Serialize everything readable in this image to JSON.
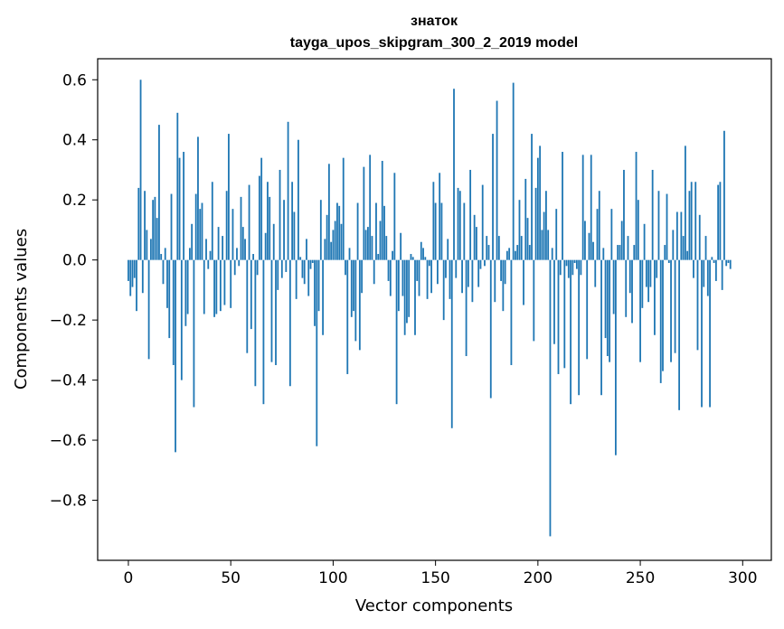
{
  "chart_data": {
    "type": "bar",
    "title": "знаток",
    "subtitle": "tayga_upos_skipgram_300_2_2019 model",
    "xlabel": "Vector components",
    "ylabel": "Components values",
    "xlim": [
      -15,
      314
    ],
    "ylim": [
      -1.0,
      0.67
    ],
    "xticks": [
      0,
      50,
      100,
      150,
      200,
      250,
      300
    ],
    "xtick_labels": [
      "0",
      "50",
      "100",
      "150",
      "200",
      "250",
      "300"
    ],
    "yticks": [
      0.6,
      0.4,
      0.2,
      0.0,
      -0.2,
      -0.4,
      -0.6,
      -0.8
    ],
    "ytick_labels": [
      "0.6",
      "0.4",
      "0.2",
      "0.0",
      "−0.2",
      "−0.4",
      "−0.6",
      "−0.8"
    ],
    "bar_color": "#1f77b4",
    "grid": false,
    "values": [
      -0.07,
      -0.12,
      -0.09,
      -0.06,
      -0.17,
      0.24,
      0.6,
      -0.11,
      0.23,
      0.1,
      -0.33,
      0.07,
      0.2,
      0.21,
      0.14,
      0.45,
      0.02,
      -0.08,
      0.04,
      -0.16,
      -0.26,
      0.22,
      -0.35,
      -0.64,
      0.49,
      0.34,
      -0.4,
      0.36,
      -0.22,
      -0.18,
      0.04,
      0.12,
      -0.49,
      0.22,
      0.41,
      0.17,
      0.19,
      -0.18,
      0.07,
      -0.03,
      0.03,
      0.26,
      -0.19,
      -0.18,
      0.11,
      -0.17,
      0.08,
      -0.15,
      0.23,
      0.42,
      -0.16,
      0.17,
      -0.05,
      0.04,
      -0.02,
      0.21,
      0.11,
      0.07,
      -0.31,
      0.25,
      -0.23,
      0.02,
      -0.42,
      -0.05,
      0.28,
      0.34,
      -0.48,
      0.09,
      0.26,
      0.21,
      -0.34,
      0.12,
      -0.35,
      -0.1,
      0.3,
      -0.06,
      0.2,
      -0.04,
      0.46,
      -0.42,
      0.26,
      0.16,
      -0.13,
      0.4,
      0.01,
      -0.06,
      -0.08,
      0.07,
      -0.12,
      -0.03,
      -0.01,
      -0.22,
      -0.62,
      -0.17,
      0.2,
      -0.25,
      0.07,
      0.15,
      0.32,
      0.06,
      0.1,
      0.13,
      0.19,
      0.18,
      0.12,
      0.34,
      -0.05,
      -0.38,
      0.04,
      -0.19,
      -0.17,
      -0.27,
      0.19,
      -0.3,
      -0.11,
      0.31,
      0.1,
      0.11,
      0.35,
      0.08,
      -0.08,
      0.19,
      0.02,
      0.13,
      0.33,
      0.18,
      0.08,
      -0.07,
      -0.12,
      0.03,
      0.29,
      -0.48,
      -0.17,
      0.09,
      -0.12,
      -0.25,
      -0.21,
      -0.19,
      0.02,
      0.01,
      -0.25,
      -0.07,
      -0.12,
      0.06,
      0.04,
      0.01,
      -0.13,
      -0.02,
      -0.11,
      0.26,
      0.19,
      -0.08,
      0.29,
      0.19,
      -0.2,
      -0.06,
      0.07,
      -0.13,
      -0.56,
      0.57,
      -0.06,
      0.24,
      0.23,
      -0.11,
      0.19,
      -0.32,
      -0.09,
      0.3,
      -0.14,
      0.15,
      0.11,
      -0.09,
      -0.03,
      0.25,
      -0.02,
      0.08,
      0.05,
      -0.46,
      0.42,
      -0.14,
      0.53,
      0.08,
      -0.07,
      -0.17,
      -0.08,
      0.03,
      0.04,
      -0.35,
      0.59,
      0.03,
      0.05,
      0.2,
      0.08,
      -0.15,
      0.27,
      0.14,
      0.05,
      0.42,
      -0.27,
      0.24,
      0.34,
      0.38,
      0.1,
      0.16,
      0.23,
      0.1,
      -0.92,
      0.04,
      -0.28,
      0.17,
      -0.38,
      -0.05,
      0.36,
      -0.36,
      -0.02,
      -0.06,
      -0.48,
      -0.05,
      -0.01,
      -0.03,
      -0.45,
      -0.05,
      0.35,
      0.13,
      -0.33,
      0.09,
      0.35,
      0.06,
      -0.09,
      0.17,
      0.23,
      -0.45,
      0.04,
      -0.26,
      -0.32,
      -0.34,
      0.17,
      -0.18,
      -0.65,
      0.05,
      0.05,
      0.13,
      0.3,
      -0.19,
      0.08,
      -0.11,
      -0.21,
      0.05,
      0.36,
      0.2,
      -0.34,
      -0.16,
      0.12,
      -0.09,
      -0.14,
      -0.09,
      0.3,
      -0.25,
      -0.06,
      0.23,
      -0.41,
      -0.37,
      0.05,
      0.22,
      -0.01,
      -0.34,
      0.1,
      -0.31,
      0.16,
      -0.5,
      0.16,
      0.08,
      0.38,
      0.03,
      0.23,
      0.26,
      -0.06,
      0.26,
      -0.3,
      0.15,
      -0.49,
      -0.09,
      0.08,
      -0.12,
      -0.49,
      0.01,
      -0.01,
      -0.07,
      0.25,
      0.26,
      -0.1,
      0.43,
      -0.02,
      -0.01,
      -0.03
    ]
  }
}
